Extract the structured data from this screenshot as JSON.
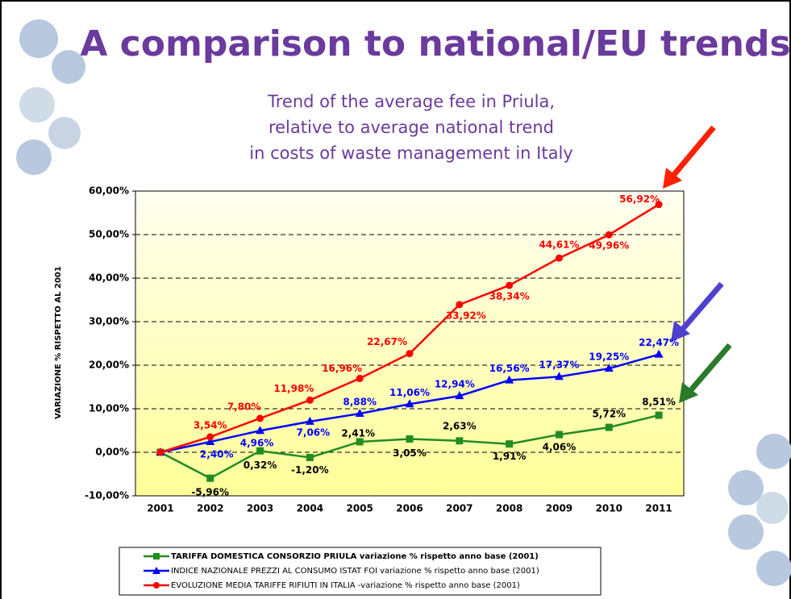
{
  "title": "A comparison to national/EU trends",
  "subtitle": [
    "Trend of the average fee in Priula,",
    "relative to average national trend",
    "in costs of waste management in Italy"
  ],
  "chart_data": {
    "type": "line",
    "y_axis_label": "VARIAZIONE % RISPETTO AL 2001",
    "categories": [
      "2001",
      "2002",
      "2003",
      "2004",
      "2005",
      "2006",
      "2007",
      "2008",
      "2009",
      "2010",
      "2011"
    ],
    "ylim": [
      -10,
      60
    ],
    "yticks": [
      {
        "value": -10,
        "label": "-10,00%"
      },
      {
        "value": 0,
        "label": "0,00%"
      },
      {
        "value": 10,
        "label": "10,00%"
      },
      {
        "value": 20,
        "label": "20,00%"
      },
      {
        "value": 30,
        "label": "30,00%"
      },
      {
        "value": 40,
        "label": "40,00%"
      },
      {
        "value": 50,
        "label": "50,00%"
      },
      {
        "value": 60,
        "label": "60,00%"
      }
    ],
    "grid": true,
    "series": [
      {
        "name": "TARIFFA DOMESTICA CONSORZIO PRIULA  variazione % rispetto anno base (2001)",
        "color": "#228b22",
        "marker": "square",
        "label_color": "#000000",
        "values": [
          0,
          -5.96,
          0.32,
          -1.2,
          2.41,
          3.05,
          2.63,
          1.91,
          4.06,
          5.72,
          8.51
        ],
        "value_labels": [
          null,
          "-5,96%",
          "0,32%",
          "-1,20%",
          "2,41%",
          "3,05%",
          "2,63%",
          "1,91%",
          "4,06%",
          "5,72%",
          "8,51%"
        ]
      },
      {
        "name": "INDICE NAZIONALE PREZZI AL CONSUMO ISTAT FOI variazione % rispetto anno base (2001)",
        "color": "#0000ff",
        "marker": "triangle",
        "label_color": "#0000ff",
        "values": [
          0,
          2.4,
          4.96,
          7.06,
          8.88,
          11.06,
          12.94,
          16.56,
          17.37,
          19.25,
          22.47
        ],
        "value_labels": [
          null,
          "2,40%",
          "4,96%",
          "7,06%",
          "8,88%",
          "11,06%",
          "12,94%",
          "16,56%",
          "17,37%",
          "19,25%",
          "22,47%"
        ]
      },
      {
        "name": "EVOLUZIONE MEDIA TARIFFE RIFIUTI IN ITALIA -variazione % rispetto anno base (2001)",
        "color": "#ff0000",
        "marker": "circle",
        "label_color": "#ff0000",
        "values": [
          0,
          3.54,
          7.8,
          11.98,
          16.96,
          22.67,
          33.92,
          38.34,
          44.61,
          49.96,
          56.92
        ],
        "value_labels": [
          null,
          "3,54%",
          "7,80%",
          "11,98%",
          "16,96%",
          "22,67%",
          "33,92%",
          "38,34%",
          "44,61%",
          "49,96%",
          "56,92%"
        ]
      }
    ]
  }
}
